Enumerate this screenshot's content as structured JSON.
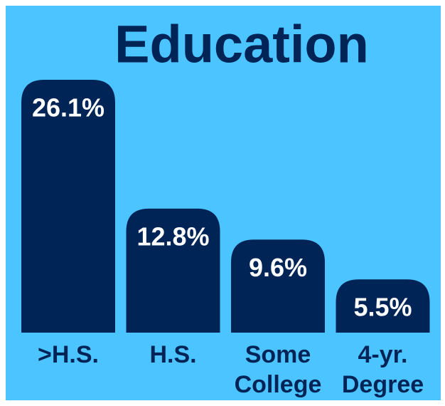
{
  "chart_data": {
    "type": "bar",
    "title": "Education",
    "categories": [
      ">H.S.",
      "H.S.",
      "Some College",
      "4-yr. Degree"
    ],
    "values": [
      26.1,
      12.8,
      9.6,
      5.5
    ],
    "value_labels": [
      "26.1%",
      "12.8%",
      "9.6%",
      "5.5%"
    ],
    "color": "#002456",
    "background": "#4bc4ff"
  }
}
